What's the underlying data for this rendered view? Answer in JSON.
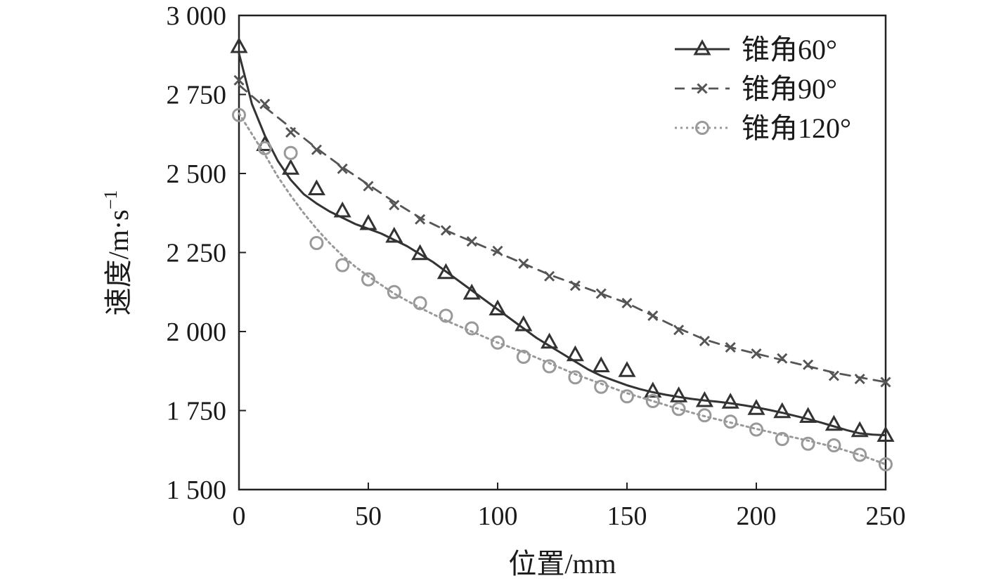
{
  "chart_data": {
    "type": "line",
    "title": "",
    "xlabel": "位置/mm",
    "ylabel_main": "速度/m·s",
    "ylabel_sup": "−1",
    "xlim": [
      0,
      250
    ],
    "ylim": [
      1500,
      3000
    ],
    "xticks": [
      0,
      50,
      100,
      150,
      200,
      250
    ],
    "xtick_labels": [
      "0",
      "50",
      "100",
      "150",
      "200",
      "250"
    ],
    "yticks": [
      1500,
      1750,
      2000,
      2250,
      2500,
      2750,
      3000
    ],
    "ytick_labels": [
      "1 500",
      "1 750",
      "2 000",
      "2 250",
      "2 500",
      "2 750",
      "3 000"
    ],
    "grid": false,
    "legend_position": "top-right",
    "series": [
      {
        "name": "锥角60°",
        "color": "#333333",
        "line_style": "solid",
        "marker": "triangle",
        "markers": {
          "x": [
            0,
            10,
            20,
            30,
            40,
            50,
            60,
            70,
            80,
            90,
            100,
            110,
            120,
            130,
            140,
            150,
            160,
            170,
            180,
            190,
            200,
            210,
            220,
            230,
            240,
            250
          ],
          "y": [
            2900,
            2590,
            2515,
            2450,
            2380,
            2340,
            2300,
            2245,
            2185,
            2120,
            2070,
            2020,
            1965,
            1925,
            1890,
            1875,
            1810,
            1795,
            1780,
            1775,
            1755,
            1745,
            1730,
            1705,
            1685,
            1670
          ]
        },
        "fit": {
          "x": [
            0,
            5,
            10,
            15,
            20,
            25,
            30,
            35,
            40,
            45,
            50,
            55,
            60,
            65,
            70,
            75,
            80,
            85,
            90,
            95,
            100,
            105,
            110,
            115,
            120,
            125,
            130,
            135,
            140,
            145,
            150,
            155,
            160,
            165,
            170,
            175,
            180,
            185,
            190,
            195,
            200,
            205,
            210,
            215,
            220,
            225,
            230,
            235,
            240,
            245,
            250
          ],
          "y": [
            2880,
            2720,
            2620,
            2540,
            2480,
            2435,
            2405,
            2380,
            2360,
            2340,
            2325,
            2310,
            2290,
            2270,
            2245,
            2220,
            2190,
            2160,
            2130,
            2100,
            2070,
            2040,
            2010,
            1980,
            1955,
            1930,
            1905,
            1880,
            1860,
            1845,
            1830,
            1818,
            1808,
            1800,
            1793,
            1787,
            1782,
            1778,
            1773,
            1767,
            1760,
            1752,
            1743,
            1733,
            1723,
            1712,
            1700,
            1688,
            1678,
            1674,
            1672
          ]
        }
      },
      {
        "name": "锥角90°",
        "color": "#555555",
        "line_style": "dashed",
        "marker": "cross",
        "markers": {
          "x": [
            0,
            10,
            20,
            30,
            40,
            50,
            60,
            70,
            80,
            90,
            100,
            110,
            120,
            130,
            140,
            150,
            160,
            170,
            180,
            190,
            200,
            210,
            220,
            230,
            240,
            250
          ],
          "y": [
            2795,
            2720,
            2630,
            2575,
            2515,
            2460,
            2400,
            2355,
            2320,
            2285,
            2255,
            2215,
            2175,
            2145,
            2120,
            2090,
            2050,
            2005,
            1970,
            1950,
            1930,
            1915,
            1895,
            1860,
            1850,
            1840
          ]
        },
        "fit": {
          "x": [
            0,
            10,
            20,
            30,
            40,
            50,
            60,
            70,
            80,
            90,
            100,
            110,
            120,
            130,
            140,
            150,
            160,
            170,
            180,
            190,
            200,
            210,
            220,
            230,
            240,
            250
          ],
          "y": [
            2780,
            2710,
            2645,
            2580,
            2520,
            2465,
            2410,
            2360,
            2320,
            2285,
            2250,
            2215,
            2180,
            2150,
            2120,
            2090,
            2050,
            2010,
            1975,
            1950,
            1930,
            1910,
            1890,
            1870,
            1855,
            1840
          ]
        }
      },
      {
        "name": "锥角120°",
        "color": "#999999",
        "line_style": "dotted",
        "marker": "circle",
        "markers": {
          "x": [
            0,
            10,
            20,
            30,
            40,
            50,
            60,
            70,
            80,
            90,
            100,
            110,
            120,
            130,
            140,
            150,
            160,
            170,
            180,
            190,
            200,
            210,
            220,
            230,
            240,
            250
          ],
          "y": [
            2685,
            2580,
            2565,
            2280,
            2210,
            2165,
            2125,
            2090,
            2050,
            2010,
            1965,
            1920,
            1890,
            1855,
            1825,
            1795,
            1780,
            1755,
            1735,
            1715,
            1690,
            1660,
            1645,
            1640,
            1610,
            1580
          ]
        },
        "fit": {
          "x": [
            0,
            5,
            10,
            15,
            20,
            25,
            30,
            35,
            40,
            45,
            50,
            60,
            70,
            80,
            90,
            100,
            110,
            120,
            130,
            140,
            150,
            160,
            170,
            180,
            190,
            200,
            210,
            220,
            230,
            240,
            250
          ],
          "y": [
            2690,
            2625,
            2560,
            2490,
            2430,
            2375,
            2325,
            2280,
            2240,
            2205,
            2175,
            2120,
            2075,
            2035,
            2000,
            1965,
            1935,
            1900,
            1865,
            1835,
            1805,
            1780,
            1755,
            1732,
            1712,
            1692,
            1673,
            1655,
            1635,
            1610,
            1580
          ]
        }
      }
    ]
  }
}
